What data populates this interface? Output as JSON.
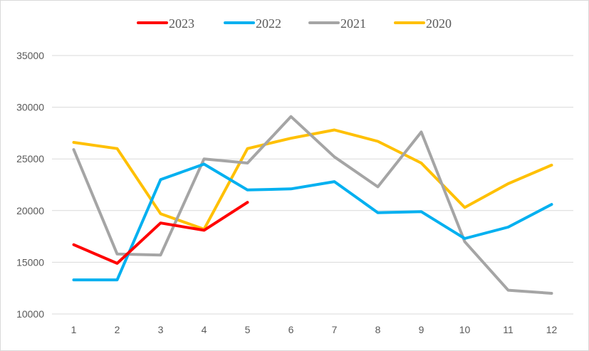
{
  "chart_data": {
    "type": "line",
    "x": [
      1,
      2,
      3,
      4,
      5,
      6,
      7,
      8,
      9,
      10,
      11,
      12
    ],
    "ylim": [
      10000,
      35000
    ],
    "yticks": [
      10000,
      15000,
      20000,
      25000,
      30000,
      35000
    ],
    "grid": true,
    "legend_position": "top",
    "series": [
      {
        "name": "2023",
        "color": "#ff0000",
        "values": [
          16700,
          14900,
          18800,
          18100,
          20800,
          null,
          null,
          null,
          null,
          null,
          null,
          null
        ]
      },
      {
        "name": "2022",
        "color": "#00b0f0",
        "values": [
          13300,
          13300,
          23000,
          24500,
          22000,
          22100,
          22800,
          19800,
          19900,
          17300,
          18400,
          20600
        ]
      },
      {
        "name": "2021",
        "color": "#a5a5a5",
        "values": [
          25900,
          15800,
          15700,
          25000,
          24600,
          29100,
          25200,
          22300,
          27600,
          17000,
          12300,
          12000
        ]
      },
      {
        "name": "2020",
        "color": "#ffc000",
        "values": [
          26600,
          26000,
          19700,
          18200,
          26000,
          27000,
          27800,
          26700,
          24600,
          20300,
          22600,
          24400
        ]
      }
    ]
  }
}
